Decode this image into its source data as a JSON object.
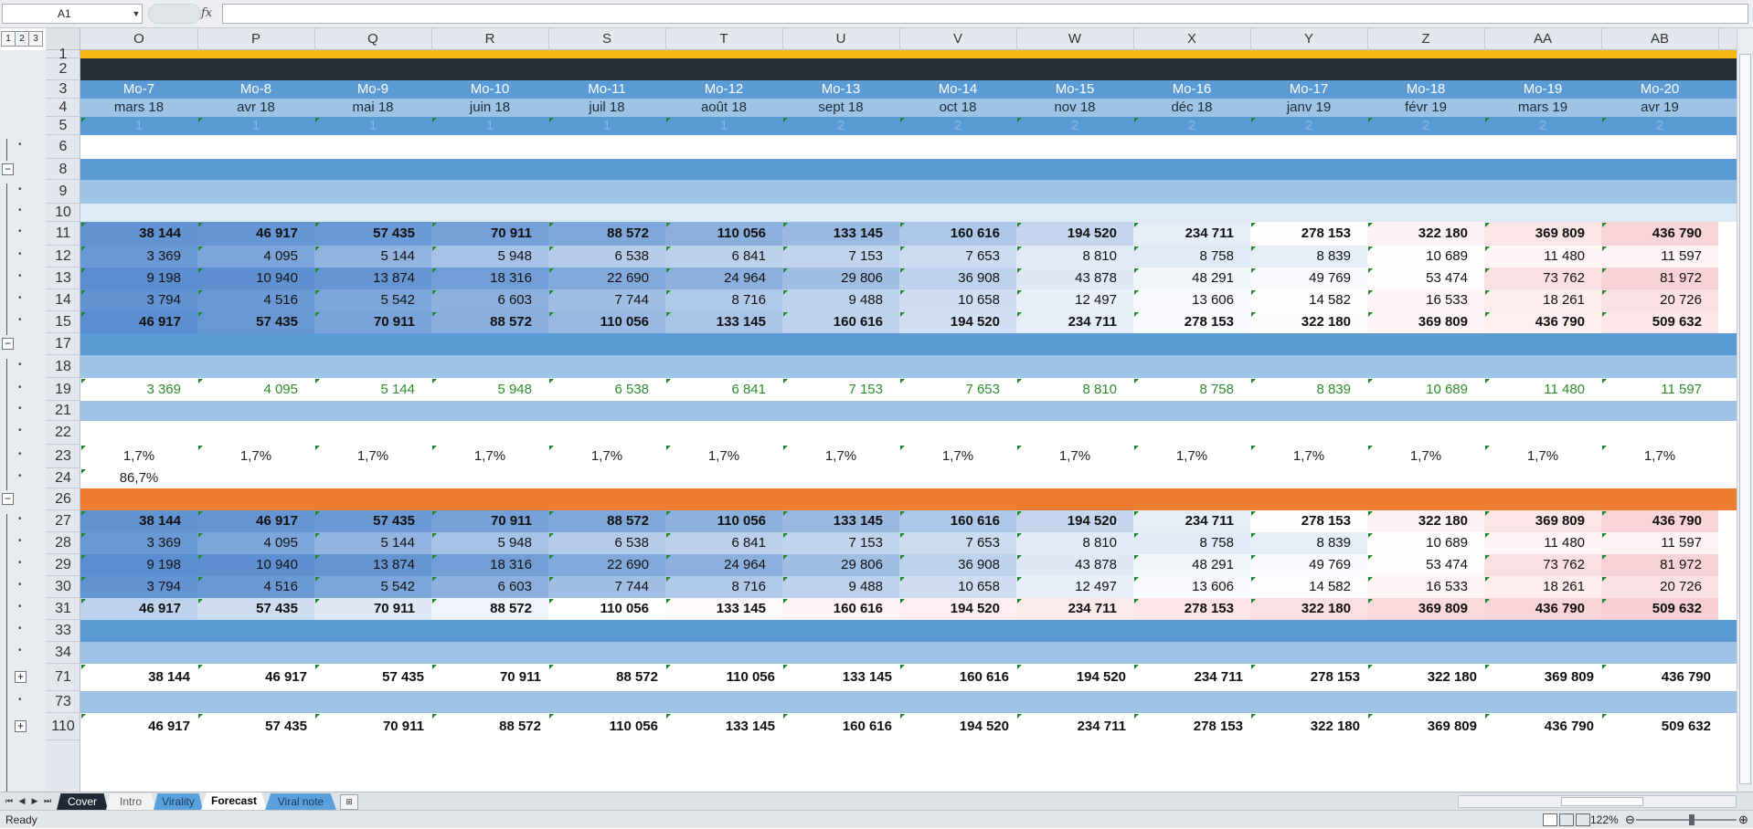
{
  "formula_bar": {
    "name_box": "A1",
    "fx_icon": "fx-icon",
    "formula": ""
  },
  "outline_levels": [
    "1",
    "2",
    "3"
  ],
  "columns": [
    "O",
    "P",
    "Q",
    "R",
    "S",
    "T",
    "U",
    "V",
    "W",
    "X",
    "Y",
    "Z",
    "AA",
    "AB"
  ],
  "rows": [
    {
      "label": "1",
      "kind": "gold"
    },
    {
      "label": "2",
      "kind": "dark"
    },
    {
      "label": "3",
      "kind": "month",
      "align": "c",
      "values": [
        "Mo-7",
        "Mo-8",
        "Mo-9",
        "Mo-10",
        "Mo-11",
        "Mo-12",
        "Mo-13",
        "Mo-14",
        "Mo-15",
        "Mo-16",
        "Mo-17",
        "Mo-18",
        "Mo-19",
        "Mo-20"
      ]
    },
    {
      "label": "4",
      "kind": "date",
      "align": "c",
      "values": [
        "mars 18",
        "avr 18",
        "mai 18",
        "juin 18",
        "juil 18",
        "août 18",
        "sept 18",
        "oct 18",
        "nov 18",
        "déc 18",
        "janv 19",
        "févr 19",
        "mars 19",
        "avr 19"
      ]
    },
    {
      "label": "5",
      "kind": "year",
      "align": "c",
      "values": [
        "1",
        "1",
        "1",
        "1",
        "1",
        "1",
        "2",
        "2",
        "2",
        "2",
        "2",
        "2",
        "2",
        "2"
      ]
    },
    {
      "label": "6",
      "kind": "white"
    },
    {
      "label": "8",
      "kind": "blue"
    },
    {
      "label": "9",
      "kind": "light"
    },
    {
      "label": "10",
      "kind": "pale"
    },
    {
      "label": "11",
      "kind": "heat-bold",
      "bold": true,
      "values": [
        "38 144",
        "46 917",
        "57 435",
        "70 911",
        "88 572",
        "110 056",
        "133 145",
        "160 616",
        "194 520",
        "234 711",
        "278 153",
        "322 180",
        "369 809",
        "436 790"
      ],
      "heat": [
        0.02,
        0.03,
        0.05,
        0.08,
        0.11,
        0.15,
        0.19,
        0.25,
        0.32,
        0.42,
        0.52,
        0.62,
        0.74,
        0.9
      ]
    },
    {
      "label": "12",
      "kind": "heat",
      "values": [
        "3 369",
        "4 095",
        "5 144",
        "5 948",
        "6 538",
        "6 841",
        "7 153",
        "7 653",
        "8 810",
        "8 758",
        "8 839",
        "10 689",
        "11 480",
        "11 597"
      ],
      "heat": [
        0.05,
        0.1,
        0.17,
        0.23,
        0.27,
        0.29,
        0.31,
        0.34,
        0.41,
        0.41,
        0.42,
        0.52,
        0.58,
        0.6
      ]
    },
    {
      "label": "13",
      "kind": "heat",
      "values": [
        "9 198",
        "10 940",
        "13 874",
        "18 316",
        "22 690",
        "24 964",
        "29 806",
        "36 908",
        "43 878",
        "48 291",
        "49 769",
        "53 474",
        "73 762",
        "81 972"
      ],
      "heat": [
        0.0,
        0.01,
        0.03,
        0.07,
        0.12,
        0.15,
        0.21,
        0.3,
        0.4,
        0.46,
        0.48,
        0.53,
        0.8,
        0.92
      ]
    },
    {
      "label": "14",
      "kind": "heat",
      "values": [
        "3 794",
        "4 516",
        "5 542",
        "6 603",
        "7 744",
        "8 716",
        "9 488",
        "10 658",
        "12 497",
        "13 606",
        "14 582",
        "16 533",
        "18 261",
        "20 726"
      ],
      "heat": [
        0.02,
        0.05,
        0.1,
        0.15,
        0.21,
        0.26,
        0.3,
        0.35,
        0.43,
        0.48,
        0.52,
        0.6,
        0.67,
        0.78
      ]
    },
    {
      "label": "15",
      "kind": "heat-bold",
      "bold": true,
      "values": [
        "46 917",
        "57 435",
        "70 911",
        "88 572",
        "110 056",
        "133 145",
        "160 616",
        "194 520",
        "234 711",
        "278 153",
        "322 180",
        "369 809",
        "436 790",
        "509 632"
      ],
      "heat": [
        0.0,
        0.04,
        0.09,
        0.14,
        0.19,
        0.24,
        0.3,
        0.36,
        0.42,
        0.48,
        0.54,
        0.6,
        0.66,
        0.72
      ]
    },
    {
      "label": "17",
      "kind": "blue"
    },
    {
      "label": "18",
      "kind": "light"
    },
    {
      "label": "19",
      "kind": "green",
      "values": [
        "3 369",
        "4 095",
        "5 144",
        "5 948",
        "6 538",
        "6 841",
        "7 153",
        "7 653",
        "8 810",
        "8 758",
        "8 839",
        "10 689",
        "11 480",
        "11 597"
      ]
    },
    {
      "label": "21",
      "kind": "light"
    },
    {
      "label": "22",
      "kind": "white"
    },
    {
      "label": "23",
      "kind": "pct",
      "align": "c",
      "values": [
        "1,7%",
        "1,7%",
        "1,7%",
        "1,7%",
        "1,7%",
        "1,7%",
        "1,7%",
        "1,7%",
        "1,7%",
        "1,7%",
        "1,7%",
        "1,7%",
        "1,7%",
        "1,7%"
      ]
    },
    {
      "label": "24",
      "kind": "pct",
      "align": "c",
      "values": [
        "86,7%"
      ]
    },
    {
      "label": "26",
      "kind": "orange"
    },
    {
      "label": "27",
      "kind": "heat-bold",
      "bold": true,
      "values": [
        "38 144",
        "46 917",
        "57 435",
        "70 911",
        "88 572",
        "110 056",
        "133 145",
        "160 616",
        "194 520",
        "234 711",
        "278 153",
        "322 180",
        "369 809",
        "436 790"
      ],
      "heat": [
        0.02,
        0.03,
        0.05,
        0.08,
        0.11,
        0.15,
        0.19,
        0.25,
        0.32,
        0.42,
        0.52,
        0.62,
        0.74,
        0.9
      ]
    },
    {
      "label": "28",
      "kind": "heat",
      "values": [
        "3 369",
        "4 095",
        "5 144",
        "5 948",
        "6 538",
        "6 841",
        "7 153",
        "7 653",
        "8 810",
        "8 758",
        "8 839",
        "10 689",
        "11 480",
        "11 597"
      ],
      "heat": [
        0.05,
        0.1,
        0.17,
        0.23,
        0.27,
        0.29,
        0.31,
        0.34,
        0.41,
        0.41,
        0.42,
        0.52,
        0.58,
        0.6
      ]
    },
    {
      "label": "29",
      "kind": "heat",
      "values": [
        "9 198",
        "10 940",
        "13 874",
        "18 316",
        "22 690",
        "24 964",
        "29 806",
        "36 908",
        "43 878",
        "48 291",
        "49 769",
        "53 474",
        "73 762",
        "81 972"
      ],
      "heat": [
        0.0,
        0.01,
        0.03,
        0.07,
        0.12,
        0.15,
        0.21,
        0.3,
        0.4,
        0.46,
        0.48,
        0.53,
        0.8,
        0.92
      ]
    },
    {
      "label": "30",
      "kind": "heat",
      "values": [
        "3 794",
        "4 516",
        "5 542",
        "6 603",
        "7 744",
        "8 716",
        "9 488",
        "10 658",
        "12 497",
        "13 606",
        "14 582",
        "16 533",
        "18 261",
        "20 726"
      ],
      "heat": [
        0.02,
        0.05,
        0.1,
        0.15,
        0.21,
        0.26,
        0.3,
        0.35,
        0.43,
        0.48,
        0.52,
        0.6,
        0.67,
        0.78
      ]
    },
    {
      "label": "31",
      "kind": "heat-bold",
      "bold": true,
      "values": [
        "46 917",
        "57 435",
        "70 911",
        "88 572",
        "110 056",
        "133 145",
        "160 616",
        "194 520",
        "234 711",
        "278 153",
        "322 180",
        "369 809",
        "436 790",
        "509 632"
      ],
      "heat": [
        0.3,
        0.35,
        0.4,
        0.45,
        0.5,
        0.55,
        0.6,
        0.65,
        0.7,
        0.75,
        0.8,
        0.85,
        0.9,
        0.95
      ]
    },
    {
      "label": "33",
      "kind": "blue"
    },
    {
      "label": "34",
      "kind": "light"
    },
    {
      "label": "71",
      "kind": "total",
      "bold": true,
      "values": [
        "38 144",
        "46 917",
        "57 435",
        "70 911",
        "88 572",
        "110 056",
        "133 145",
        "160 616",
        "194 520",
        "234 711",
        "278 153",
        "322 180",
        "369 809",
        "436 790"
      ]
    },
    {
      "label": "73",
      "kind": "light"
    },
    {
      "label": "110",
      "kind": "total",
      "bold": true,
      "values": [
        "46 917",
        "57 435",
        "70 911",
        "88 572",
        "110 056",
        "133 145",
        "160 616",
        "194 520",
        "234 711",
        "278 153",
        "322 180",
        "369 809",
        "436 790",
        "509 632"
      ]
    }
  ],
  "sheet_tabs": [
    {
      "label": "Cover",
      "color": "#1f2a36",
      "text_color": "#ffffff"
    },
    {
      "label": "Intro",
      "color": "#f2f2f2",
      "text_color": "#555555"
    },
    {
      "label": "Virality",
      "color": "#5aa0dc",
      "text_color": "#1a3a5c"
    },
    {
      "label": "Forecast",
      "color": "#ffffff",
      "text_color": "#000000",
      "active": true
    },
    {
      "label": "Viral note",
      "color": "#5aa0dc",
      "text_color": "#1a3a5c"
    }
  ],
  "status": {
    "ready": "Ready",
    "zoom": "122%"
  },
  "colors": {
    "gold": "#f7b717",
    "dark": "#262d36",
    "month": "#5b9bd5",
    "date": "#9dc3e6",
    "year": "#5b9bd5",
    "blue": "#5b9bd5",
    "light": "#9dc3e6",
    "pale": "#ddebf7",
    "orange": "#ed7d31",
    "green_text": "#2e8b2e",
    "heat_low": "#5b8ed0",
    "heat_mid": "#ffffff",
    "heat_high": "#f8c9cf"
  }
}
